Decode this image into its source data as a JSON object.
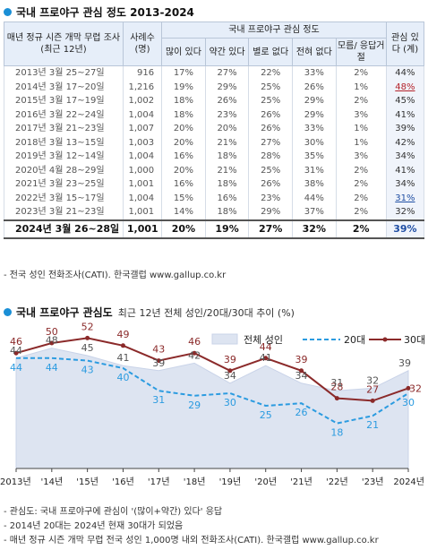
{
  "section1_title": "국내 프로야구 관심 정도 2013-2024",
  "table": {
    "header_period": "매년 정규 시즌 개막 무렵 조사 (최근 12년)",
    "header_count": "사례수 (명)",
    "header_group": "국내 프로야구 관심 정도",
    "header_cols": [
      "많이 있다",
      "약간 있다",
      "별로 없다",
      "전혀 없다",
      "모름/ 응답거절"
    ],
    "header_interest": "관심 있다 (계)",
    "rows": [
      {
        "period": "2013년 3월 25~27일",
        "n": "916",
        "c1": "17%",
        "c2": "27%",
        "c3": "22%",
        "c4": "33%",
        "c5": "2%",
        "interest": "44%",
        "mark": ""
      },
      {
        "period": "2014년 3월 17~20일",
        "n": "1,216",
        "c1": "19%",
        "c2": "29%",
        "c3": "25%",
        "c4": "26%",
        "c5": "1%",
        "interest": "48%",
        "mark": "red"
      },
      {
        "period": "2015년 3월 17~19일",
        "n": "1,002",
        "c1": "18%",
        "c2": "26%",
        "c3": "25%",
        "c4": "29%",
        "c5": "2%",
        "interest": "45%",
        "mark": ""
      },
      {
        "period": "2016년 3월 22~24일",
        "n": "1,004",
        "c1": "18%",
        "c2": "23%",
        "c3": "26%",
        "c4": "29%",
        "c5": "3%",
        "interest": "41%",
        "mark": ""
      },
      {
        "period": "2017년 3월 21~23일",
        "n": "1,007",
        "c1": "20%",
        "c2": "20%",
        "c3": "26%",
        "c4": "33%",
        "c5": "1%",
        "interest": "39%",
        "mark": ""
      },
      {
        "period": "2018년 3월 13~15일",
        "n": "1,003",
        "c1": "20%",
        "c2": "21%",
        "c3": "27%",
        "c4": "30%",
        "c5": "1%",
        "interest": "42%",
        "mark": ""
      },
      {
        "period": "2019년 3월 12~14일",
        "n": "1,004",
        "c1": "16%",
        "c2": "18%",
        "c3": "28%",
        "c4": "35%",
        "c5": "3%",
        "interest": "34%",
        "mark": ""
      },
      {
        "period": "2020년 4월 28~29일",
        "n": "1,000",
        "c1": "20%",
        "c2": "21%",
        "c3": "25%",
        "c4": "31%",
        "c5": "2%",
        "interest": "41%",
        "mark": ""
      },
      {
        "period": "2021년 3월 23~25일",
        "n": "1,001",
        "c1": "16%",
        "c2": "18%",
        "c3": "26%",
        "c4": "38%",
        "c5": "2%",
        "interest": "34%",
        "mark": ""
      },
      {
        "period": "2022년 3월 15~17일",
        "n": "1,004",
        "c1": "15%",
        "c2": "16%",
        "c3": "23%",
        "c4": "44%",
        "c5": "2%",
        "interest": "31%",
        "mark": "blue"
      },
      {
        "period": "2023년 3월 21~23일",
        "n": "1,001",
        "c1": "14%",
        "c2": "18%",
        "c3": "29%",
        "c4": "37%",
        "c5": "2%",
        "interest": "32%",
        "mark": ""
      },
      {
        "period": "2024년 3월 26~28일",
        "n": "1,001",
        "c1": "20%",
        "c2": "19%",
        "c3": "27%",
        "c4": "32%",
        "c5": "2%",
        "interest": "39%",
        "mark": "hl"
      }
    ]
  },
  "table_note": "- 전국 성인 전화조사(CATI). 한국갤럽 www.gallup.co.kr",
  "section2_title": "국내 프로야구 관심도",
  "section2_subtitle": "최근 12년 전체 성인/20대/30대 추이 (%)",
  "colors": {
    "accent": "#1a8fd6",
    "area": "#dde4f1",
    "area_stroke": "#c9d3e8",
    "line20": "#2b9be0",
    "line30": "#8b2a2a",
    "label_total": "#555555"
  },
  "chart_data": {
    "type": "line",
    "categories": [
      "2013년",
      "'14년",
      "'15년",
      "'16년",
      "'17년",
      "'18년",
      "'19년",
      "'20년",
      "'21년",
      "'22년",
      "'23년",
      "2024년"
    ],
    "ylim": [
      0,
      60
    ],
    "legend_position": "top-right",
    "series": [
      {
        "name": "전체 성인",
        "style": "area",
        "values": [
          44,
          48,
          45,
          41,
          39,
          42,
          34,
          41,
          34,
          31,
          32,
          39
        ]
      },
      {
        "name": "20대",
        "style": "dashed",
        "values": [
          44,
          44,
          43,
          40,
          31,
          29,
          30,
          25,
          26,
          18,
          21,
          30
        ]
      },
      {
        "name": "30대",
        "style": "solid-marker",
        "values": [
          46,
          50,
          52,
          49,
          43,
          46,
          39,
          44,
          39,
          28,
          27,
          32
        ]
      }
    ]
  },
  "footnotes": [
    "- 관심도: 국내 프로야구에 관심이 '(많이+약간) 있다' 응답",
    "- 2014년 20대는 2024년 현재 30대가 되었음",
    "- 매년 정규 시즌 개막 무렵 전국 성인 1,000명 내외 전화조사(CATI). 한국갤럽 www.gallup.co.kr"
  ]
}
